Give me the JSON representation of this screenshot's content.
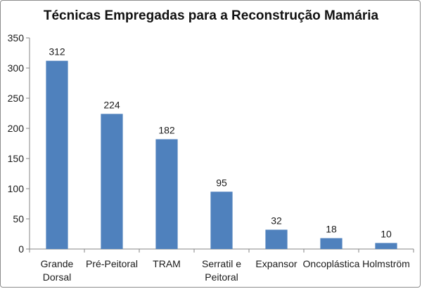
{
  "chart_data": {
    "type": "bar",
    "title": "Técnicas Empregadas para a Reconstrução Mamária",
    "xlabel": "",
    "ylabel": "",
    "categories": [
      [
        "Grande",
        "Dorsal"
      ],
      [
        "Pré-Peitoral"
      ],
      [
        "TRAM"
      ],
      [
        "Serratil e",
        "Peitoral"
      ],
      [
        "Expansor"
      ],
      [
        "Oncoplástica"
      ],
      [
        "Holmström"
      ]
    ],
    "values": [
      312,
      224,
      182,
      95,
      32,
      18,
      10
    ],
    "ylim": [
      0,
      350
    ],
    "yticks": [
      "0",
      "50",
      "100",
      "150",
      "200",
      "250",
      "300",
      "350"
    ],
    "grid": false,
    "legend": "none",
    "bar_color": "#4f81bd"
  }
}
